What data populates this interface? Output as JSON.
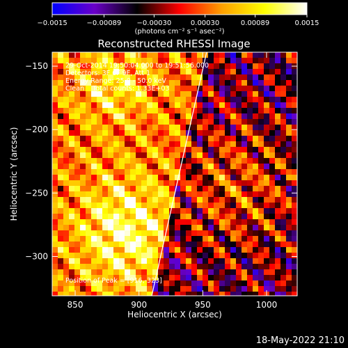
{
  "chart_data": {
    "type": "heatmap",
    "title": "Reconstructed RHESSI Image",
    "xlabel": "Heliocentric X (arcsec)",
    "ylabel": "Heliocentric Y (arcsec)",
    "xlim": [
      832,
      1024
    ],
    "ylim": [
      -331,
      -139
    ],
    "x_ticks": [
      850,
      900,
      950,
      1000
    ],
    "x_tick_labels": [
      "850",
      "900",
      "950",
      "1000"
    ],
    "y_ticks": [
      -150,
      -200,
      -250,
      -300
    ],
    "y_tick_labels": [
      "−150",
      "−200",
      "−250",
      "−300"
    ],
    "colorbar": {
      "min": -0.0015,
      "max": 0.0015,
      "ticks": [
        -0.0015,
        -0.00089,
        -0.0003,
        0.0003,
        0.00089,
        0.0015
      ],
      "tick_labels": [
        "−0.0015",
        "−0.00089",
        "−0.00030",
        "0.00030",
        "0.00089",
        "0.0015"
      ],
      "units_label": "(photons cm⁻² s⁻¹ asec⁻²)",
      "colors": [
        "#0000ff",
        "#6a00c8",
        "#000000",
        "#ff0000",
        "#ffa000",
        "#ffff00",
        "#ffffff"
      ]
    },
    "annotations": [
      "29-Oct-2014 19:50:04.000 to 19:51:56.000",
      "Detectors: 3F 6F 9F, Att 1",
      "Energy Range: 25.0 - 50.0 keV",
      "Clean    Total counts: 1.33E+03"
    ],
    "peak_label": "Position of Peak = [916,-323]",
    "limb_line": [
      [
        910,
        -331
      ],
      [
        953,
        -139
      ]
    ],
    "grid": false,
    "legend": "none"
  },
  "footer": {
    "timestamp": "18-May-2022 21:10"
  }
}
